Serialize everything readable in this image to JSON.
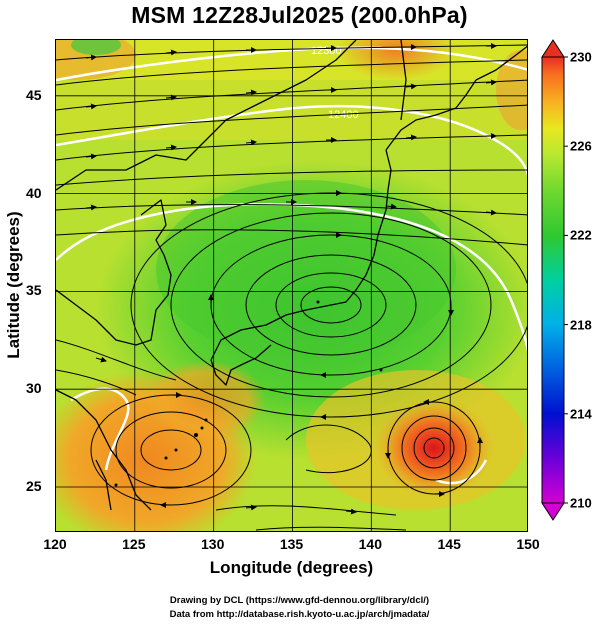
{
  "title": "MSM 12Z28Jul2025 (200.0hPa)",
  "x_axis": {
    "label": "Longitude (degrees)",
    "ticks": [
      "120",
      "125",
      "130",
      "135",
      "140",
      "145",
      "150"
    ],
    "range": [
      120,
      150
    ]
  },
  "y_axis": {
    "label": "Latitude  (degrees)",
    "ticks": [
      "25",
      "30",
      "35",
      "40",
      "45"
    ],
    "range": [
      22.4,
      47.6
    ]
  },
  "colorbar": {
    "labels": [
      "230",
      "226",
      "222",
      "218",
      "214",
      "210"
    ],
    "range": [
      210,
      230
    ],
    "colors": [
      "#d400d4",
      "#6a00d8",
      "#0010d0",
      "#0060e0",
      "#00b0e8",
      "#00d0a0",
      "#30c830",
      "#70d830",
      "#b8e830",
      "#e8e820",
      "#f8b020",
      "#f87020",
      "#e83020"
    ]
  },
  "contour_labels": [
    "12300",
    "12400"
  ],
  "credits": {
    "line1": "Drawing by DCL (https://www.gfd-dennou.org/library/dcl/)",
    "line2": "Data from http://database.rish.kyoto-u.ac.jp/arch/jmadata/"
  }
}
